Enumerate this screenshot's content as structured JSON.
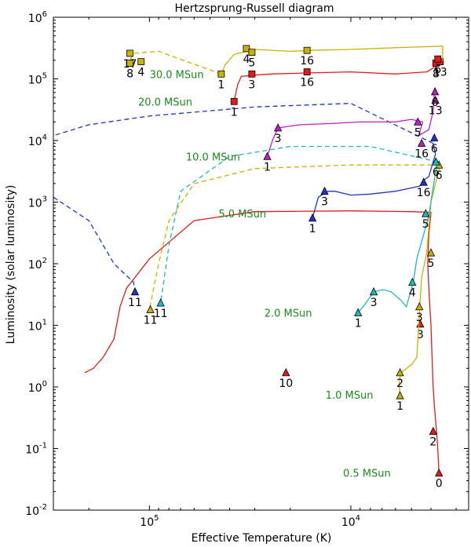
{
  "chart_data": {
    "type": "line",
    "title": "Hertzsprung-Russell diagram",
    "xlabel": "Effective Temperature (K)",
    "ylabel": "Luminosity (solar luminosity)",
    "xscale": "log",
    "yscale": "log",
    "x_inverted": true,
    "xlim": [
      300000,
      2600
    ],
    "ylim": [
      0.01,
      1000000
    ],
    "x_ticks": [
      {
        "value": 100000,
        "base": "10",
        "exp": "5"
      },
      {
        "value": 10000,
        "base": "10",
        "exp": "4"
      }
    ],
    "y_ticks": [
      {
        "value": 0.01,
        "base": "10",
        "exp": "-2"
      },
      {
        "value": 0.1,
        "base": "10",
        "exp": "-1"
      },
      {
        "value": 1,
        "base": "10",
        "exp": "0"
      },
      {
        "value": 10,
        "base": "10",
        "exp": "1"
      },
      {
        "value": 100,
        "base": "10",
        "exp": "2"
      },
      {
        "value": 1000,
        "base": "10",
        "exp": "3"
      },
      {
        "value": 10000,
        "base": "10",
        "exp": "4"
      },
      {
        "value": 100000,
        "base": "10",
        "exp": "5"
      },
      {
        "value": 1000000,
        "base": "10",
        "exp": "6"
      }
    ],
    "series": [
      {
        "name": "0.5 MSun",
        "color": "#e31a1c",
        "marker": "triangle",
        "label": {
          "text": "0.5 MSun",
          "T": 5900,
          "L": 0.04
        },
        "solid": [
          [
            3650,
            0.04
          ],
          [
            3700,
            0.1
          ],
          [
            3760,
            0.2
          ],
          [
            3850,
            0.5
          ],
          [
            3900,
            1.0
          ],
          [
            3950,
            3
          ],
          [
            4000,
            10
          ],
          [
            4080,
            30
          ],
          [
            4150,
            100
          ],
          [
            4100,
            300
          ],
          [
            4000,
            680
          ],
          [
            5000,
            700
          ],
          [
            10000,
            720
          ],
          [
            30000,
            700
          ],
          [
            60000,
            500
          ],
          [
            100000,
            120
          ],
          [
            130000,
            40
          ],
          [
            140000,
            20
          ],
          [
            150000,
            6
          ],
          [
            170000,
            3
          ],
          [
            190000,
            2
          ],
          [
            210000,
            1.7
          ]
        ],
        "dashed": [],
        "points": [
          {
            "label": "0",
            "T": 3650,
            "L": 0.04
          },
          {
            "label": "2",
            "T": 3900,
            "L": 0.19
          },
          {
            "label": "3",
            "T": 4520,
            "L": 10.5
          },
          {
            "label": "10",
            "T": 21000,
            "L": 1.7
          }
        ]
      },
      {
        "name": "1.0 MSun",
        "color": "#c8b400",
        "marker": "triangle",
        "label": {
          "text": "1.0 MSun",
          "T": 7200,
          "L": 0.75
        },
        "solid": [
          [
            5700,
            0.7
          ],
          [
            5750,
            1.2
          ],
          [
            5650,
            1.7
          ],
          [
            5000,
            2.3
          ],
          [
            4700,
            3
          ],
          [
            4600,
            10
          ],
          [
            4550,
            20
          ],
          [
            4450,
            60
          ],
          [
            4200,
            150
          ],
          [
            4000,
            1000
          ],
          [
            3600,
            4000
          ]
        ],
        "dashed": [
          [
            3600,
            4000
          ],
          [
            10000,
            4000
          ],
          [
            30000,
            3500
          ],
          [
            60000,
            2000
          ],
          [
            80000,
            500
          ],
          [
            90000,
            100
          ],
          [
            100000,
            18
          ]
        ],
        "points": [
          {
            "label": "1",
            "T": 5700,
            "L": 0.72
          },
          {
            "label": "2",
            "T": 5700,
            "L": 1.7
          },
          {
            "label": "3",
            "T": 4570,
            "L": 20
          },
          {
            "label": "5",
            "T": 4000,
            "L": 150
          },
          {
            "label": "6",
            "T": 3650,
            "L": 4000
          },
          {
            "label": "11",
            "T": 99000,
            "L": 18
          }
        ]
      },
      {
        "name": "2.0 MSun",
        "color": "#20b8b8",
        "marker": "triangle",
        "label": {
          "text": "2.0 MSun",
          "T": 14500,
          "L": 16
        },
        "solid": [
          [
            9200,
            16
          ],
          [
            8500,
            22
          ],
          [
            7700,
            35
          ],
          [
            6900,
            38
          ],
          [
            6300,
            35
          ],
          [
            5600,
            25
          ],
          [
            5300,
            20
          ],
          [
            4900,
            50
          ],
          [
            4700,
            120
          ],
          [
            4100,
            600
          ],
          [
            3800,
            3000
          ],
          [
            3700,
            4500
          ]
        ],
        "dashed": [
          [
            3700,
            4500
          ],
          [
            8000,
            8000
          ],
          [
            20000,
            8000
          ],
          [
            40000,
            5500
          ],
          [
            70000,
            1500
          ],
          [
            80000,
            200
          ],
          [
            88000,
            23
          ]
        ],
        "points": [
          {
            "label": "1",
            "T": 9200,
            "L": 16
          },
          {
            "label": "3",
            "T": 7700,
            "L": 35
          },
          {
            "label": "4",
            "T": 4950,
            "L": 50
          },
          {
            "label": "5",
            "T": 4250,
            "L": 650
          },
          {
            "label": "6",
            "T": 3780,
            "L": 4500
          },
          {
            "label": "11",
            "T": 88000,
            "L": 23
          }
        ]
      },
      {
        "name": "5.0 MSun",
        "color": "#1f35c9",
        "marker": "triangle",
        "label": {
          "text": "5.0 MSun",
          "T": 24500,
          "L": 650
        },
        "solid": [
          [
            15500,
            550
          ],
          [
            14500,
            1200
          ],
          [
            13000,
            1500
          ],
          [
            12000,
            1500
          ],
          [
            10000,
            1300
          ],
          [
            8000,
            1350
          ],
          [
            6000,
            1500
          ],
          [
            4600,
            1800
          ],
          [
            4300,
            2000
          ],
          [
            4400,
            2200
          ],
          [
            4100,
            2600
          ],
          [
            3800,
            6000
          ],
          [
            3900,
            9000
          ]
        ],
        "dashed": [
          [
            3900,
            9000
          ],
          [
            10000,
            40000
          ],
          [
            30000,
            35000
          ],
          [
            100000,
            25000
          ],
          [
            200000,
            18000
          ],
          [
            300000,
            12000
          ]
        ],
        "dashed2": [
          [
            300000,
            1200
          ],
          [
            200000,
            500
          ],
          [
            150000,
            100
          ],
          [
            120000,
            50
          ],
          [
            118000,
            35
          ]
        ],
        "points": [
          {
            "label": "1",
            "T": 15500,
            "L": 550
          },
          {
            "label": "3",
            "T": 13500,
            "L": 1500
          },
          {
            "label": "6",
            "T": 3850,
            "L": 11000
          },
          {
            "label": "16",
            "T": 4350,
            "L": 2100
          },
          {
            "label": "11",
            "T": 118000,
            "L": 35
          }
        ]
      },
      {
        "name": "10.0 MSun",
        "color": "#bf1fbf",
        "marker": "triangle",
        "label": {
          "text": "10.0 MSun",
          "T": 33000,
          "L": 5500
        },
        "solid": [
          [
            26000,
            5500
          ],
          [
            24500,
            10000
          ],
          [
            23000,
            16000
          ],
          [
            18000,
            18000
          ],
          [
            12000,
            19000
          ],
          [
            9000,
            20000
          ],
          [
            6000,
            20000
          ],
          [
            5000,
            22000
          ],
          [
            4400,
            20000
          ],
          [
            4600,
            12000
          ],
          [
            4100,
            15000
          ],
          [
            3900,
            30000
          ],
          [
            3850,
            60000
          ]
        ],
        "dashed": [],
        "points": [
          {
            "label": "1",
            "T": 26000,
            "L": 5500
          },
          {
            "label": "3",
            "T": 23000,
            "L": 16000
          },
          {
            "label": "5",
            "T": 4650,
            "L": 20000
          },
          {
            "label": "13",
            "T": 3800,
            "L": 45000
          },
          {
            "label": "16",
            "T": 4450,
            "L": 9000
          },
          {
            "label": "6",
            "T": 3820,
            "L": 62000
          }
        ]
      },
      {
        "name": "20.0 MSun",
        "color": "#e31a1c",
        "marker": "square",
        "label": {
          "text": "20.0 MSun",
          "T": 57000,
          "L": 43000
        },
        "solid": [
          [
            38000,
            43000
          ],
          [
            36500,
            80000
          ],
          [
            35000,
            110000
          ],
          [
            30000,
            115000
          ],
          [
            25000,
            120000
          ],
          [
            16000,
            125000
          ],
          [
            10000,
            130000
          ],
          [
            6000,
            120000
          ],
          [
            4200,
            130000
          ],
          [
            3900,
            150000
          ],
          [
            3800,
            180000
          ],
          [
            3700,
            200000
          ]
        ],
        "dashed": [],
        "points": [
          {
            "label": "1",
            "T": 38000,
            "L": 43000
          },
          {
            "label": "3",
            "T": 31000,
            "L": 120000
          },
          {
            "label": "16",
            "T": 16500,
            "L": 130000
          },
          {
            "label": "8",
            "T": 3780,
            "L": 180000
          },
          {
            "label": "13",
            "T": 3600,
            "L": 190000
          },
          {
            "label": "6",
            "T": 3700,
            "L": 210000
          }
        ]
      },
      {
        "name": "30.0 MSun",
        "color": "#c8b400",
        "marker": "square",
        "label": {
          "text": "30.0 MSun",
          "T": 50000,
          "L": 120000
        },
        "solid": [
          [
            44000,
            120000
          ],
          [
            42000,
            170000
          ],
          [
            38000,
            250000
          ],
          [
            30000,
            300000
          ],
          [
            20000,
            280000
          ],
          [
            16000,
            290000
          ],
          [
            10000,
            300000
          ],
          [
            6000,
            320000
          ],
          [
            3500,
            340000
          ],
          [
            3500,
            200000
          ]
        ],
        "dashed": [
          [
            44000,
            120000
          ],
          [
            90000,
            280000
          ],
          [
            120000,
            260000
          ],
          [
            125000,
            200000
          ]
        ],
        "points": [
          {
            "label": "1",
            "T": 44000,
            "L": 120000
          },
          {
            "label": "4",
            "T": 33000,
            "L": 310000
          },
          {
            "label": "5",
            "T": 31000,
            "L": 270000
          },
          {
            "label": "16",
            "T": 16500,
            "L": 290000
          },
          {
            "label": "8",
            "T": 125000,
            "L": 180000
          },
          {
            "label": "17",
            "T": 125000,
            "L": 260000
          },
          {
            "label": "4",
            "T": 110000,
            "L": 190000
          }
        ]
      }
    ]
  }
}
